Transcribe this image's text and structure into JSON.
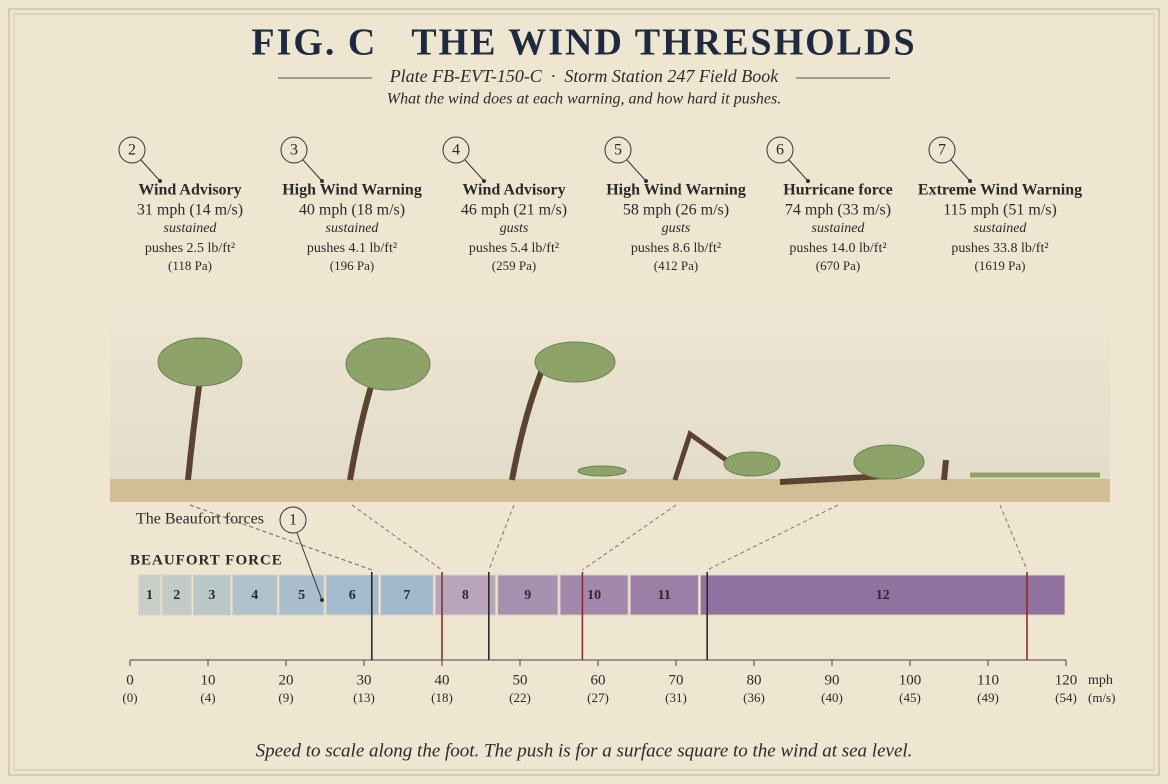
{
  "header": {
    "title": "FIG. C   THE WIND THRESHOLDS",
    "subtitle": "Plate FB-EVT-150-C  ·  Storm Station 247 Field Book",
    "tagline": "What the wind does at each warning, and how hard it pushes."
  },
  "callouts": [
    {
      "number": "2",
      "title": "Wind Advisory",
      "speed": "31 mph (14 m/s)",
      "kind": "sustained",
      "pushes": "pushes 2.5 lb/ft²",
      "pa": "(118 Pa)",
      "mph": 31,
      "color": "#2a2a2a"
    },
    {
      "number": "3",
      "title": "High Wind Warning",
      "speed": "40 mph (18 m/s)",
      "kind": "sustained",
      "pushes": "pushes 4.1 lb/ft²",
      "pa": "(196 Pa)",
      "mph": 40,
      "color": "#8e2b2b"
    },
    {
      "number": "4",
      "title": "Wind Advisory",
      "speed": "46 mph (21 m/s)",
      "kind": "gusts",
      "pushes": "pushes 5.4 lb/ft²",
      "pa": "(259 Pa)",
      "mph": 46,
      "color": "#2a2a2a"
    },
    {
      "number": "5",
      "title": "High Wind Warning",
      "speed": "58 mph (26 m/s)",
      "kind": "gusts",
      "pushes": "pushes 8.6 lb/ft²",
      "pa": "(412 Pa)",
      "mph": 58,
      "color": "#8e2b2b"
    },
    {
      "number": "6",
      "title": "Hurricane force",
      "speed": "74 mph (33 m/s)",
      "kind": "sustained",
      "pushes": "pushes 14.0 lb/ft²",
      "pa": "(670 Pa)",
      "mph": 74,
      "color": "#2a2a2a"
    },
    {
      "number": "7",
      "title": "Extreme Wind Warning",
      "speed": "115 mph (51 m/s)",
      "kind": "sustained",
      "pushes": "pushes 33.8 lb/ft²",
      "pa": "(1619 Pa)",
      "mph": 115,
      "color": "#8e2b2b"
    }
  ],
  "beaufort": {
    "note": "The Beaufort forces",
    "note_number": "1",
    "label": "BEAUFORT FORCE",
    "bands": [
      {
        "force": 1,
        "from": 1,
        "to": 4,
        "color": "#c8cdc8"
      },
      {
        "force": 2,
        "from": 4,
        "to": 8,
        "color": "#c3cbc8"
      },
      {
        "force": 3,
        "from": 8,
        "to": 13,
        "color": "#bac7c8"
      },
      {
        "force": 4,
        "from": 13,
        "to": 19,
        "color": "#aec2cc"
      },
      {
        "force": 5,
        "from": 19,
        "to": 25,
        "color": "#a9bfcd"
      },
      {
        "force": 6,
        "from": 25,
        "to": 32,
        "color": "#a3bccd"
      },
      {
        "force": 7,
        "from": 32,
        "to": 39,
        "color": "#a0b9cb"
      },
      {
        "force": 8,
        "from": 39,
        "to": 47,
        "color": "#b9a5bb"
      },
      {
        "force": 9,
        "from": 47,
        "to": 55,
        "color": "#a890b0"
      },
      {
        "force": 10,
        "from": 55,
        "to": 64,
        "color": "#a288ab"
      },
      {
        "force": 11,
        "from": 64,
        "to": 73,
        "color": "#9a7ea6"
      },
      {
        "force": 12,
        "from": 73,
        "to": 120,
        "color": "#8f72a0"
      }
    ]
  },
  "axis": {
    "xlim": [
      0,
      120
    ],
    "ticks": [
      0,
      10,
      20,
      30,
      40,
      50,
      60,
      70,
      80,
      90,
      100,
      110,
      120
    ],
    "ms_labels": [
      "(0)",
      "(4)",
      "(9)",
      "(13)",
      "(18)",
      "(22)",
      "(27)",
      "(31)",
      "(36)",
      "(40)",
      "(45)",
      "(49)",
      "(54)"
    ],
    "unit": "mph",
    "unit2": "(m/s)"
  },
  "footer": "Speed to scale along the foot. The push is for a surface square to the wind at sea level."
}
